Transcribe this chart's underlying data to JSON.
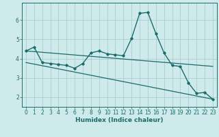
{
  "xlabel": "Humidex (Indice chaleur)",
  "ylabel": "",
  "background_color": "#ceeaea",
  "grid_color": "#aacfcf",
  "line_color": "#1a6b6b",
  "xlim": [
    -0.5,
    23.5
  ],
  "ylim": [
    1.5,
    6.9
  ],
  "yticks": [
    2,
    3,
    4,
    5,
    6
  ],
  "xticks": [
    0,
    1,
    2,
    3,
    4,
    5,
    6,
    7,
    8,
    9,
    10,
    11,
    12,
    13,
    14,
    15,
    16,
    17,
    18,
    19,
    20,
    21,
    22,
    23
  ],
  "line1_x": [
    0,
    1,
    2,
    3,
    4,
    5,
    6,
    7,
    8,
    9,
    10,
    11,
    12,
    13,
    14,
    15,
    16,
    17,
    18,
    19,
    20,
    21,
    22,
    23
  ],
  "line1_y": [
    4.4,
    4.6,
    3.8,
    3.75,
    3.7,
    3.65,
    3.5,
    3.75,
    4.3,
    4.4,
    4.25,
    4.2,
    4.15,
    5.05,
    6.35,
    6.4,
    5.3,
    4.3,
    3.65,
    3.6,
    2.75,
    2.2,
    2.25,
    1.9
  ],
  "line2_x": [
    0,
    23
  ],
  "line2_y": [
    4.4,
    3.6
  ],
  "line3_x": [
    0,
    23
  ],
  "line3_y": [
    3.8,
    1.9
  ],
  "tick_fontsize": 5.5,
  "xlabel_fontsize": 6.5,
  "xlabel_fontweight": "bold"
}
